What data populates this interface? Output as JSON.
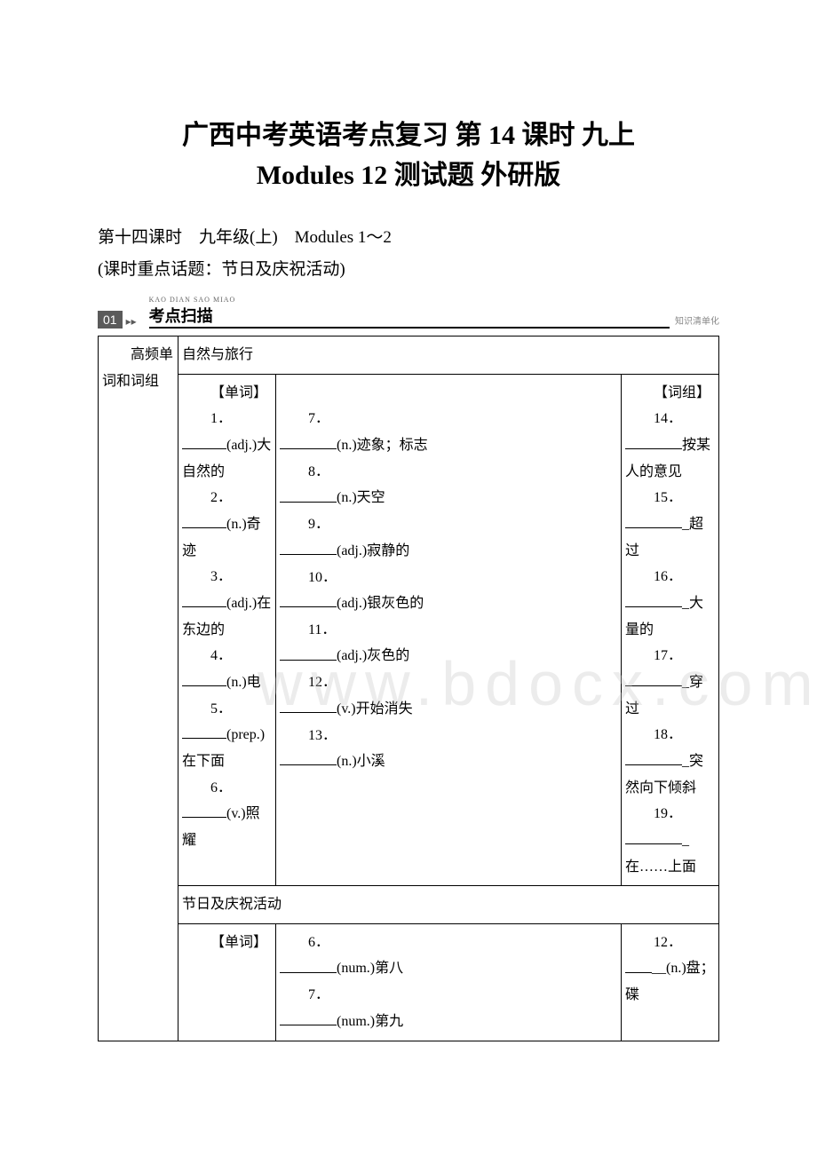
{
  "title": {
    "line1": "广西中考英语考点复习 第 14 课时 九上",
    "line2": "Modules 12 测试题 外研版"
  },
  "subtitle": {
    "line1": "第十四课时　九年级(上)　Modules 1～2",
    "line2": "(课时重点话题：节日及庆祝活动)"
  },
  "banner": {
    "badge": "01",
    "pinyin": "KAO DIAN SAO MIAO",
    "label": "考点扫描",
    "right": "知识清单化"
  },
  "table": {
    "rowhead": "高频单词和词组",
    "topic1": "自然与旅行",
    "col1_header": "【单词】",
    "col1_items": [
      "1．________(adj.)大自然的",
      "2．________(n.)奇迹",
      "3．________(adj.)在东边的",
      "4．________(n.)电",
      "5．________(prep.)在下面",
      "6．________(v.)照耀"
    ],
    "col2_items": [
      "7．________(n.)迹象；标志",
      "8．________(n.)天空",
      "9．________(adj.)寂静的",
      "10．________(adj.)银灰色的",
      "11．________(adj.)灰色的",
      "12．________(v.)开始消失",
      "13．________(n.)小溪"
    ],
    "col3_header": "【词组】",
    "col3_items": [
      "14．__________按某人的意见",
      "15．__________超过",
      "16．__________大量的",
      "17．__________穿过",
      "18．__________突然向下倾斜",
      "19．__________在……上面"
    ],
    "topic2": "节日及庆祝活动",
    "row2_col1_header": "【单词】",
    "row2_col2_items": [
      "6．________(num.)第八",
      "7．________(num.)第九"
    ],
    "row2_col3_items": [
      "12．________(n.)盘；碟"
    ]
  }
}
